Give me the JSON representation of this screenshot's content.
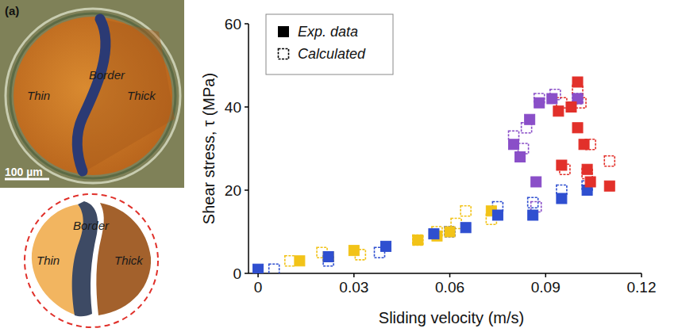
{
  "panel_label": "(a)",
  "micrograph": {
    "labels": [
      "Border",
      "Thin",
      "Thick"
    ],
    "scale_bar": "100 µm"
  },
  "schematic": {
    "labels": [
      "Border",
      "Thin",
      "Thick"
    ]
  },
  "chart_data": {
    "type": "scatter",
    "x_label": "Sliding velocity (m/s)",
    "y_label": "Shear stress, τ (MPa)",
    "xlim": [
      -0.003,
      0.12
    ],
    "xticks": [
      0,
      0.03,
      0.06,
      0.09,
      0.12
    ],
    "ylim": [
      0,
      60
    ],
    "yticks": [
      0,
      20,
      40,
      60
    ],
    "legend": "upper left",
    "series": [
      {
        "name": "Exp. data",
        "marker": "filled-square",
        "color": "#000000",
        "x": [
          0.013,
          0.022,
          0.03,
          0.05,
          0.056,
          0.06,
          0.073,
          0,
          0.022,
          0.04,
          0.055,
          0.065,
          0.075,
          0.086,
          0.095,
          0.103,
          0.08,
          0.082,
          0.085,
          0.088,
          0.092,
          0.087,
          0.1,
          0.094,
          0.098,
          0.1,
          0.1,
          0.103,
          0.102,
          0.095,
          0.11,
          0.104
        ],
        "values": [
          3,
          4,
          5.5,
          8,
          9,
          10,
          15,
          1,
          4,
          6.5,
          9.5,
          11,
          14,
          14,
          18,
          20,
          31,
          28,
          37,
          41,
          42,
          22,
          42,
          39,
          40,
          46,
          35,
          25,
          31,
          26,
          21,
          22
        ],
        "colors": [
          "#f2c318",
          "#f2c318",
          "#f2c318",
          "#f2c318",
          "#f2c318",
          "#f2c318",
          "#f2c318",
          "#2f4fd0",
          "#2f4fd0",
          "#2f4fd0",
          "#2f4fd0",
          "#2f4fd0",
          "#2f4fd0",
          "#2f4fd0",
          "#2f4fd0",
          "#2f4fd0",
          "#8a4fc8",
          "#8a4fc8",
          "#8a4fc8",
          "#8a4fc8",
          "#8a4fc8",
          "#8a4fc8",
          "#8a4fc8",
          "#e2302a",
          "#e2302a",
          "#e2302a",
          "#e2302a",
          "#e2302a",
          "#e2302a",
          "#e2302a",
          "#e2302a",
          "#e2302a"
        ]
      },
      {
        "name": "Calculated",
        "marker": "open-square",
        "color": "#000000",
        "x": [
          0.01,
          0.02,
          0.032,
          0.05,
          0.056,
          0.062,
          0.065,
          0.073,
          0.005,
          0.022,
          0.038,
          0.06,
          0.075,
          0.086,
          0.095,
          0.103,
          0.08,
          0.083,
          0.084,
          0.088,
          0.093,
          0.087,
          0.1,
          0.095,
          0.1,
          0.101,
          0.104,
          0.11,
          0.096,
          0.103
        ],
        "values": [
          3,
          5,
          4.5,
          8,
          10,
          12,
          15,
          13,
          1,
          3,
          5,
          10,
          16,
          17,
          20,
          21,
          33,
          30,
          35,
          42,
          43,
          16,
          42,
          41,
          44,
          41,
          31,
          27,
          25,
          24
        ],
        "colors": [
          "#f2c318",
          "#f2c318",
          "#f2c318",
          "#f2c318",
          "#f2c318",
          "#f2c318",
          "#f2c318",
          "#f2c318",
          "#2f4fd0",
          "#2f4fd0",
          "#2f4fd0",
          "#2f4fd0",
          "#2f4fd0",
          "#2f4fd0",
          "#2f4fd0",
          "#2f4fd0",
          "#8a4fc8",
          "#8a4fc8",
          "#8a4fc8",
          "#8a4fc8",
          "#8a4fc8",
          "#8a4fc8",
          "#8a4fc8",
          "#e2302a",
          "#e2302a",
          "#e2302a",
          "#e2302a",
          "#e2302a",
          "#e2302a",
          "#e2302a"
        ]
      }
    ]
  }
}
